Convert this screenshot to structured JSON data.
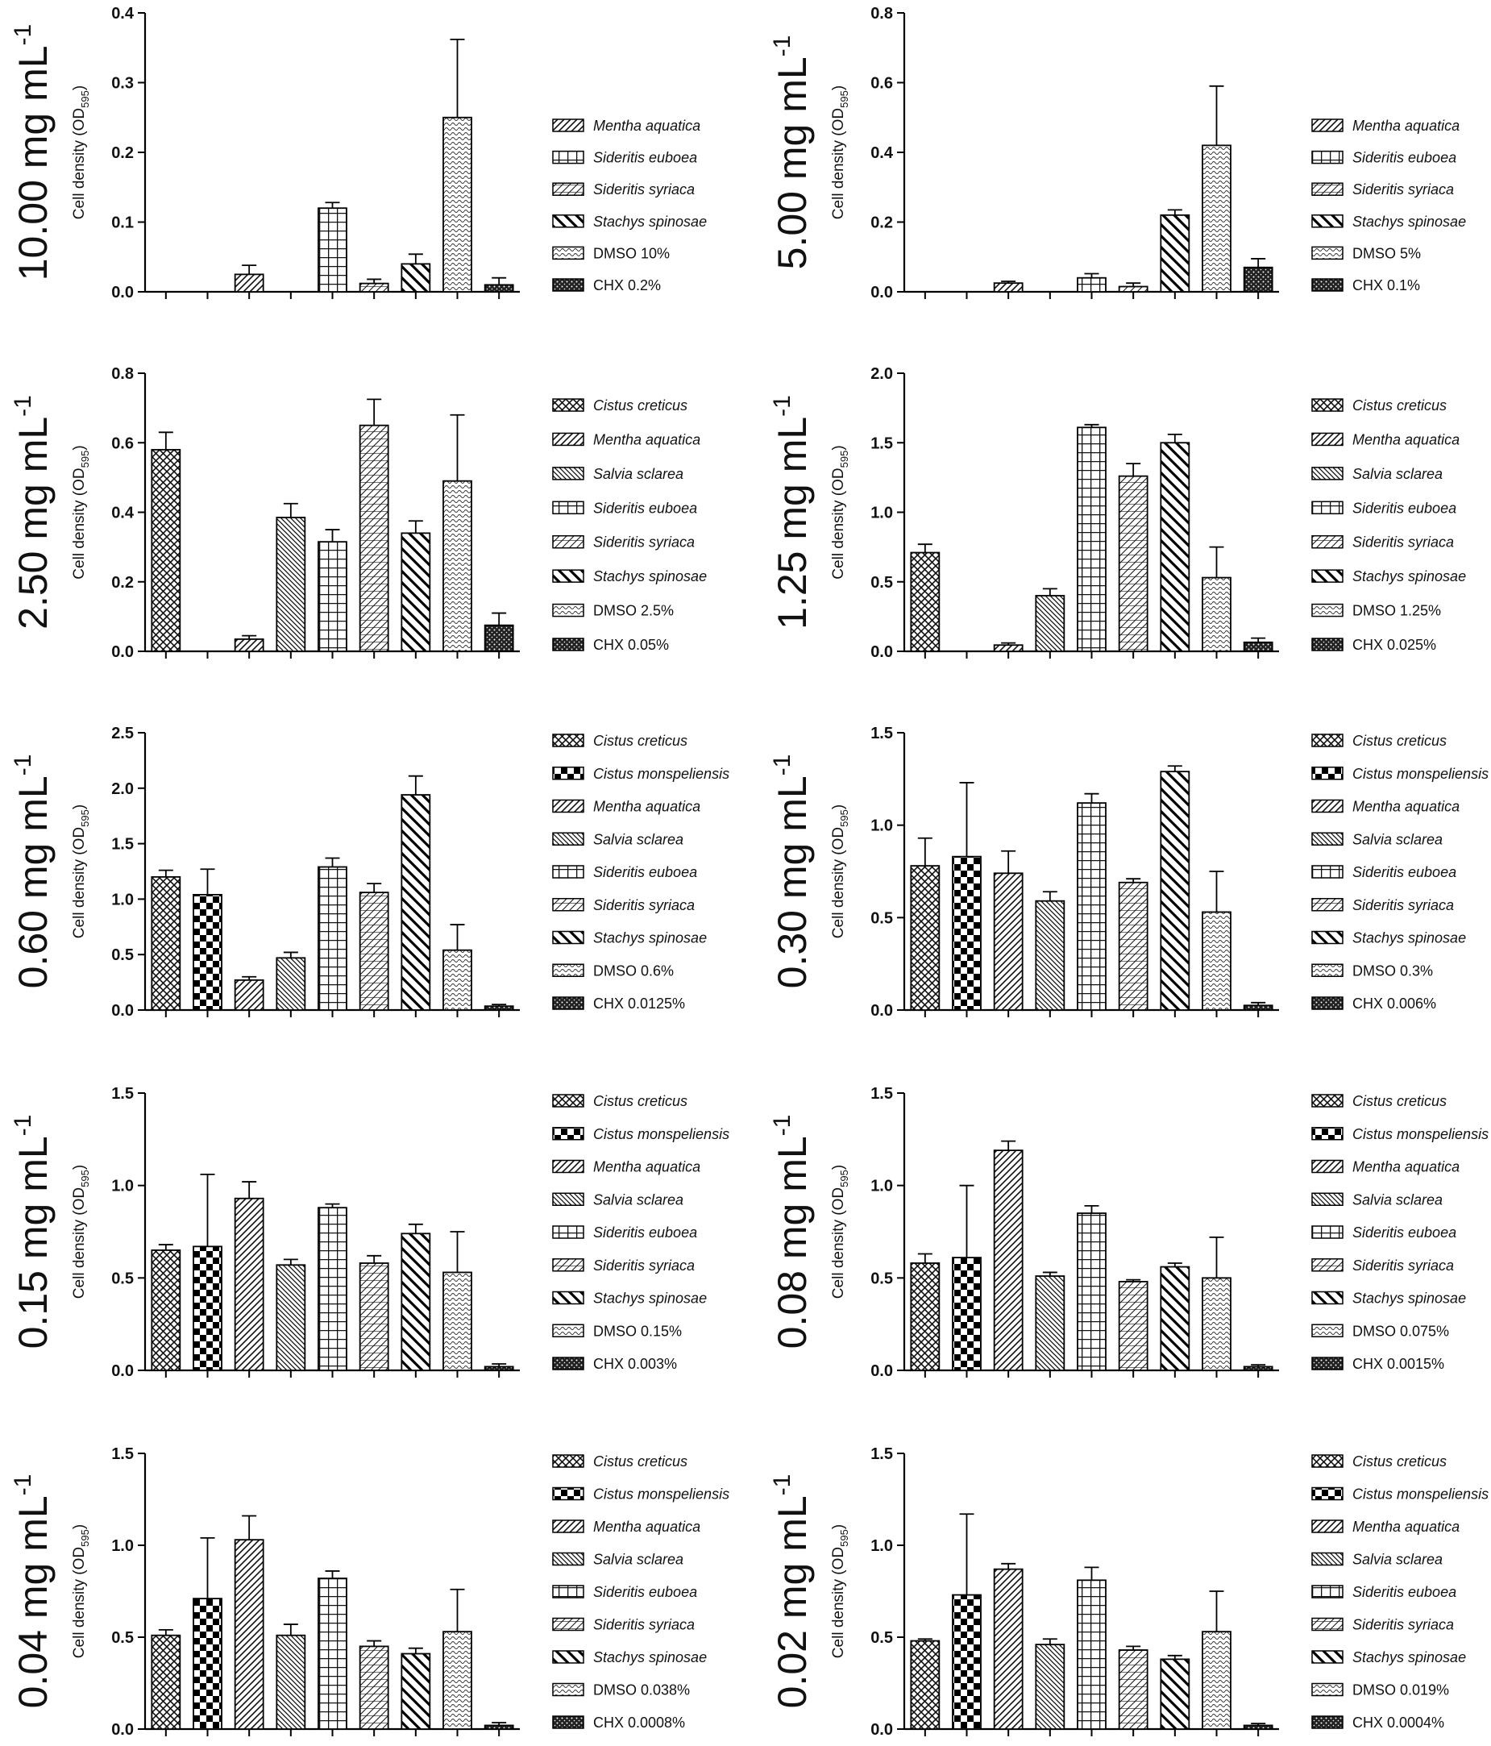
{
  "figure": {
    "ylabel_main": "Cell density (OD",
    "ylabel_sub": "595",
    "ylabel_end": ")",
    "concentration_unit": "mg mL",
    "concentration_exp": "-1"
  },
  "chart_data": [
    {
      "type": "bar",
      "concentration": "10.00",
      "ylabel": "Cell density (OD595)",
      "ylim": [
        0,
        0.4
      ],
      "yticks": [
        "0.0",
        "0.1",
        "0.2",
        "0.3",
        "0.4"
      ],
      "categories": [
        "Cistus creticus",
        "Cistus monspeliensis",
        "Mentha aquatica",
        "Salvia sclarea",
        "Sideritis euboea",
        "Sideritis syriaca",
        "Stachys spinosae",
        "DMSO 10%",
        "CHX 0.2%"
      ],
      "values": [
        0,
        0,
        0.025,
        0,
        0.12,
        0.012,
        0.04,
        0.25,
        0.01
      ],
      "errors": [
        0,
        0,
        0.013,
        0,
        0.008,
        0.006,
        0.014,
        0.112,
        0.01
      ],
      "legend": [
        {
          "label": "Mentha aquatica",
          "pattern": "mentha",
          "italic": true
        },
        {
          "label": "Sideritis euboea",
          "pattern": "euboea",
          "italic": true
        },
        {
          "label": "Sideritis syriaca",
          "pattern": "syriaca",
          "italic": true
        },
        {
          "label": "Stachys spinosae",
          "pattern": "stachys",
          "italic": true
        },
        {
          "label": "DMSO 10%",
          "pattern": "dmso",
          "italic": false
        },
        {
          "label": "CHX 0.2%",
          "pattern": "chx",
          "italic": false
        }
      ]
    },
    {
      "type": "bar",
      "concentration": "5.00",
      "ylabel": "Cell density (OD595)",
      "ylim": [
        0,
        0.8
      ],
      "yticks": [
        "0.0",
        "0.2",
        "0.4",
        "0.6",
        "0.8"
      ],
      "categories": [
        "Cistus creticus",
        "Cistus monspeliensis",
        "Mentha aquatica",
        "Salvia sclarea",
        "Sideritis euboea",
        "Sideritis syriaca",
        "Stachys spinosae",
        "DMSO 5%",
        "CHX 0.1%"
      ],
      "values": [
        0,
        0,
        0.025,
        0,
        0.04,
        0.015,
        0.22,
        0.42,
        0.07
      ],
      "errors": [
        0,
        0,
        0.005,
        0,
        0.012,
        0.01,
        0.015,
        0.17,
        0.025
      ],
      "legend": [
        {
          "label": "Mentha aquatica",
          "pattern": "mentha",
          "italic": true
        },
        {
          "label": "Sideritis euboea",
          "pattern": "euboea",
          "italic": true
        },
        {
          "label": "Sideritis syriaca",
          "pattern": "syriaca",
          "italic": true
        },
        {
          "label": "Stachys spinosae",
          "pattern": "stachys",
          "italic": true
        },
        {
          "label": "DMSO 5%",
          "pattern": "dmso",
          "italic": false
        },
        {
          "label": "CHX 0.1%",
          "pattern": "chx",
          "italic": false
        }
      ]
    },
    {
      "type": "bar",
      "concentration": "2.50",
      "ylabel": "Cell density (OD595)",
      "ylim": [
        0,
        0.8
      ],
      "yticks": [
        "0.0",
        "0.2",
        "0.4",
        "0.6",
        "0.8"
      ],
      "categories": [
        "Cistus creticus",
        "Cistus monspeliensis",
        "Mentha aquatica",
        "Salvia sclarea",
        "Sideritis euboea",
        "Sideritis syriaca",
        "Stachys spinosae",
        "DMSO 2.5%",
        "CHX 0.05%"
      ],
      "values": [
        0.58,
        0,
        0.035,
        0.385,
        0.315,
        0.65,
        0.34,
        0.49,
        0.075
      ],
      "errors": [
        0.05,
        0,
        0.01,
        0.04,
        0.035,
        0.075,
        0.035,
        0.19,
        0.035
      ],
      "legend": [
        {
          "label": "Cistus creticus",
          "pattern": "creticus",
          "italic": true
        },
        {
          "label": "Mentha aquatica",
          "pattern": "mentha",
          "italic": true
        },
        {
          "label": "Salvia sclarea",
          "pattern": "salvia",
          "italic": true
        },
        {
          "label": "Sideritis euboea",
          "pattern": "euboea",
          "italic": true
        },
        {
          "label": "Sideritis syriaca",
          "pattern": "syriaca",
          "italic": true
        },
        {
          "label": "Stachys spinosae",
          "pattern": "stachys",
          "italic": true
        },
        {
          "label": "DMSO 2.5%",
          "pattern": "dmso",
          "italic": false
        },
        {
          "label": "CHX 0.05%",
          "pattern": "chx",
          "italic": false
        }
      ]
    },
    {
      "type": "bar",
      "concentration": "1.25",
      "ylabel": "Cell density (OD595)",
      "ylim": [
        0,
        2.0
      ],
      "yticks": [
        "0.0",
        "0.5",
        "1.0",
        "1.5",
        "2.0"
      ],
      "categories": [
        "Cistus creticus",
        "Cistus monspeliensis",
        "Mentha aquatica",
        "Salvia sclarea",
        "Sideritis euboea",
        "Sideritis syriaca",
        "Stachys spinosae",
        "DMSO 1.25%",
        "CHX 0.025%"
      ],
      "values": [
        0.71,
        0,
        0.045,
        0.4,
        1.61,
        1.26,
        1.5,
        0.53,
        0.065
      ],
      "errors": [
        0.06,
        0,
        0.015,
        0.05,
        0.02,
        0.09,
        0.06,
        0.22,
        0.03
      ],
      "legend": [
        {
          "label": "Cistus creticus",
          "pattern": "creticus",
          "italic": true
        },
        {
          "label": "Mentha aquatica",
          "pattern": "mentha",
          "italic": true
        },
        {
          "label": "Salvia sclarea",
          "pattern": "salvia",
          "italic": true
        },
        {
          "label": "Sideritis euboea",
          "pattern": "euboea",
          "italic": true
        },
        {
          "label": "Sideritis syriaca",
          "pattern": "syriaca",
          "italic": true
        },
        {
          "label": "Stachys spinosae",
          "pattern": "stachys",
          "italic": true
        },
        {
          "label": "DMSO 1.25%",
          "pattern": "dmso",
          "italic": false
        },
        {
          "label": "CHX 0.025%",
          "pattern": "chx",
          "italic": false
        }
      ]
    },
    {
      "type": "bar",
      "concentration": "0.60",
      "ylabel": "Cell density (OD595)",
      "ylim": [
        0,
        2.5
      ],
      "yticks": [
        "0.0",
        "0.5",
        "1.0",
        "1.5",
        "2.0",
        "2.5"
      ],
      "categories": [
        "Cistus creticus",
        "Cistus monspeliensis",
        "Mentha aquatica",
        "Salvia sclarea",
        "Sideritis euboea",
        "Sideritis syriaca",
        "Stachys spinosae",
        "DMSO 0.6%",
        "CHX 0.0125%"
      ],
      "values": [
        1.2,
        1.04,
        0.27,
        0.47,
        1.29,
        1.06,
        1.94,
        0.54,
        0.035
      ],
      "errors": [
        0.06,
        0.23,
        0.03,
        0.05,
        0.08,
        0.08,
        0.17,
        0.23,
        0.015
      ],
      "legend": [
        {
          "label": "Cistus creticus",
          "pattern": "creticus",
          "italic": true
        },
        {
          "label": "Cistus monspeliensis",
          "pattern": "monspel",
          "italic": true
        },
        {
          "label": "Mentha aquatica",
          "pattern": "mentha",
          "italic": true
        },
        {
          "label": "Salvia sclarea",
          "pattern": "salvia",
          "italic": true
        },
        {
          "label": "Sideritis euboea",
          "pattern": "euboea",
          "italic": true
        },
        {
          "label": "Sideritis syriaca",
          "pattern": "syriaca",
          "italic": true
        },
        {
          "label": "Stachys spinosae",
          "pattern": "stachys",
          "italic": true
        },
        {
          "label": "DMSO 0.6%",
          "pattern": "dmso",
          "italic": false
        },
        {
          "label": "CHX 0.0125%",
          "pattern": "chx",
          "italic": false
        }
      ]
    },
    {
      "type": "bar",
      "concentration": "0.30",
      "ylabel": "Cell density (OD595)",
      "ylim": [
        0,
        1.5
      ],
      "yticks": [
        "0.0",
        "0.5",
        "1.0",
        "1.5"
      ],
      "categories": [
        "Cistus creticus",
        "Cistus monspeliensis",
        "Mentha aquatica",
        "Salvia sclarea",
        "Sideritis euboea",
        "Sideritis syriaca",
        "Stachys spinosae",
        "DMSO 0.3%",
        "CHX 0.006%"
      ],
      "values": [
        0.78,
        0.83,
        0.74,
        0.59,
        1.12,
        0.69,
        1.29,
        0.53,
        0.025
      ],
      "errors": [
        0.15,
        0.4,
        0.12,
        0.05,
        0.05,
        0.02,
        0.03,
        0.22,
        0.015
      ],
      "legend": [
        {
          "label": "Cistus creticus",
          "pattern": "creticus",
          "italic": true
        },
        {
          "label": "Cistus monspeliensis",
          "pattern": "monspel",
          "italic": true
        },
        {
          "label": "Mentha aquatica",
          "pattern": "mentha",
          "italic": true
        },
        {
          "label": "Salvia sclarea",
          "pattern": "salvia",
          "italic": true
        },
        {
          "label": "Sideritis euboea",
          "pattern": "euboea",
          "italic": true
        },
        {
          "label": "Sideritis syriaca",
          "pattern": "syriaca",
          "italic": true
        },
        {
          "label": "Stachys spinosae",
          "pattern": "stachys",
          "italic": true
        },
        {
          "label": "DMSO 0.3%",
          "pattern": "dmso",
          "italic": false
        },
        {
          "label": "CHX 0.006%",
          "pattern": "chx",
          "italic": false
        }
      ]
    },
    {
      "type": "bar",
      "concentration": "0.15",
      "ylabel": "Cell density (OD595)",
      "ylim": [
        0,
        1.5
      ],
      "yticks": [
        "0.0",
        "0.5",
        "1.0",
        "1.5"
      ],
      "categories": [
        "Cistus creticus",
        "Cistus monspeliensis",
        "Mentha aquatica",
        "Salvia sclarea",
        "Sideritis euboea",
        "Sideritis syriaca",
        "Stachys spinosae",
        "DMSO 0.15%",
        "CHX 0.003%"
      ],
      "values": [
        0.65,
        0.67,
        0.93,
        0.57,
        0.88,
        0.58,
        0.74,
        0.53,
        0.02
      ],
      "errors": [
        0.03,
        0.39,
        0.09,
        0.03,
        0.02,
        0.04,
        0.05,
        0.22,
        0.015
      ],
      "legend": [
        {
          "label": "Cistus creticus",
          "pattern": "creticus",
          "italic": true
        },
        {
          "label": "Cistus monspeliensis",
          "pattern": "monspel",
          "italic": true
        },
        {
          "label": "Mentha aquatica",
          "pattern": "mentha",
          "italic": true
        },
        {
          "label": "Salvia sclarea",
          "pattern": "salvia",
          "italic": true
        },
        {
          "label": "Sideritis euboea",
          "pattern": "euboea",
          "italic": true
        },
        {
          "label": "Sideritis syriaca",
          "pattern": "syriaca",
          "italic": true
        },
        {
          "label": "Stachys spinosae",
          "pattern": "stachys",
          "italic": true
        },
        {
          "label": "DMSO 0.15%",
          "pattern": "dmso",
          "italic": false
        },
        {
          "label": "CHX 0.003%",
          "pattern": "chx",
          "italic": false
        }
      ]
    },
    {
      "type": "bar",
      "concentration": "0.08",
      "ylabel": "Cell density (OD595)",
      "ylim": [
        0,
        1.5
      ],
      "yticks": [
        "0.0",
        "0.5",
        "1.0",
        "1.5"
      ],
      "categories": [
        "Cistus creticus",
        "Cistus monspeliensis",
        "Mentha aquatica",
        "Salvia sclarea",
        "Sideritis euboea",
        "Sideritis syriaca",
        "Stachys spinosae",
        "DMSO 0.075%",
        "CHX 0.0015%"
      ],
      "values": [
        0.58,
        0.61,
        1.19,
        0.51,
        0.85,
        0.48,
        0.56,
        0.5,
        0.02
      ],
      "errors": [
        0.05,
        0.39,
        0.05,
        0.02,
        0.04,
        0.01,
        0.02,
        0.22,
        0.01
      ],
      "legend": [
        {
          "label": "Cistus creticus",
          "pattern": "creticus",
          "italic": true
        },
        {
          "label": "Cistus monspeliensis",
          "pattern": "monspel",
          "italic": true
        },
        {
          "label": "Mentha aquatica",
          "pattern": "mentha",
          "italic": true
        },
        {
          "label": "Salvia sclarea",
          "pattern": "salvia",
          "italic": true
        },
        {
          "label": "Sideritis euboea",
          "pattern": "euboea",
          "italic": true
        },
        {
          "label": "Sideritis syriaca",
          "pattern": "syriaca",
          "italic": true
        },
        {
          "label": "Stachys spinosae",
          "pattern": "stachys",
          "italic": true
        },
        {
          "label": "DMSO 0.075%",
          "pattern": "dmso",
          "italic": false
        },
        {
          "label": "CHX 0.0015%",
          "pattern": "chx",
          "italic": false
        }
      ]
    },
    {
      "type": "bar",
      "concentration": "0.04",
      "ylabel": "Cell density (OD595)",
      "ylim": [
        0,
        1.5
      ],
      "yticks": [
        "0.0",
        "0.5",
        "1.0",
        "1.5"
      ],
      "categories": [
        "Cistus creticus",
        "Cistus monspeliensis",
        "Mentha aquatica",
        "Salvia sclarea",
        "Sideritis euboea",
        "Sideritis syriaca",
        "Stachys spinosae",
        "DMSO 0.038%",
        "CHX 0.0008%"
      ],
      "values": [
        0.51,
        0.71,
        1.03,
        0.51,
        0.82,
        0.45,
        0.41,
        0.53,
        0.02
      ],
      "errors": [
        0.03,
        0.33,
        0.13,
        0.06,
        0.04,
        0.03,
        0.03,
        0.23,
        0.015
      ],
      "legend": [
        {
          "label": "Cistus creticus",
          "pattern": "creticus",
          "italic": true
        },
        {
          "label": "Cistus monspeliensis",
          "pattern": "monspel",
          "italic": true
        },
        {
          "label": "Mentha aquatica",
          "pattern": "mentha",
          "italic": true
        },
        {
          "label": "Salvia sclarea",
          "pattern": "salvia",
          "italic": true
        },
        {
          "label": "Sideritis euboea",
          "pattern": "euboea",
          "italic": true
        },
        {
          "label": "Sideritis syriaca",
          "pattern": "syriaca",
          "italic": true
        },
        {
          "label": "Stachys spinosae",
          "pattern": "stachys",
          "italic": true
        },
        {
          "label": "DMSO 0.038%",
          "pattern": "dmso",
          "italic": false
        },
        {
          "label": "CHX 0.0008%",
          "pattern": "chx",
          "italic": false
        }
      ]
    },
    {
      "type": "bar",
      "concentration": "0.02",
      "ylabel": "Cell density (OD595)",
      "ylim": [
        0,
        1.5
      ],
      "yticks": [
        "0.0",
        "0.5",
        "1.0",
        "1.5"
      ],
      "categories": [
        "Cistus creticus",
        "Cistus monspeliensis",
        "Mentha aquatica",
        "Salvia sclarea",
        "Sideritis euboea",
        "Sideritis syriaca",
        "Stachys spinosae",
        "DMSO 0.019%",
        "CHX 0.0004%"
      ],
      "values": [
        0.48,
        0.73,
        0.87,
        0.46,
        0.81,
        0.43,
        0.38,
        0.53,
        0.02
      ],
      "errors": [
        0.01,
        0.44,
        0.03,
        0.03,
        0.07,
        0.02,
        0.02,
        0.22,
        0.01
      ],
      "legend": [
        {
          "label": "Cistus creticus",
          "pattern": "creticus",
          "italic": true
        },
        {
          "label": "Cistus monspeliensis",
          "pattern": "monspel",
          "italic": true
        },
        {
          "label": "Mentha aquatica",
          "pattern": "mentha",
          "italic": true
        },
        {
          "label": "Salvia sclarea",
          "pattern": "salvia",
          "italic": true
        },
        {
          "label": "Sideritis euboea",
          "pattern": "euboea",
          "italic": true
        },
        {
          "label": "Sideritis syriaca",
          "pattern": "syriaca",
          "italic": true
        },
        {
          "label": "Stachys spinosae",
          "pattern": "stachys",
          "italic": true
        },
        {
          "label": "DMSO 0.019%",
          "pattern": "dmso",
          "italic": false
        },
        {
          "label": "CHX 0.0004%",
          "pattern": "chx",
          "italic": false
        }
      ]
    }
  ]
}
